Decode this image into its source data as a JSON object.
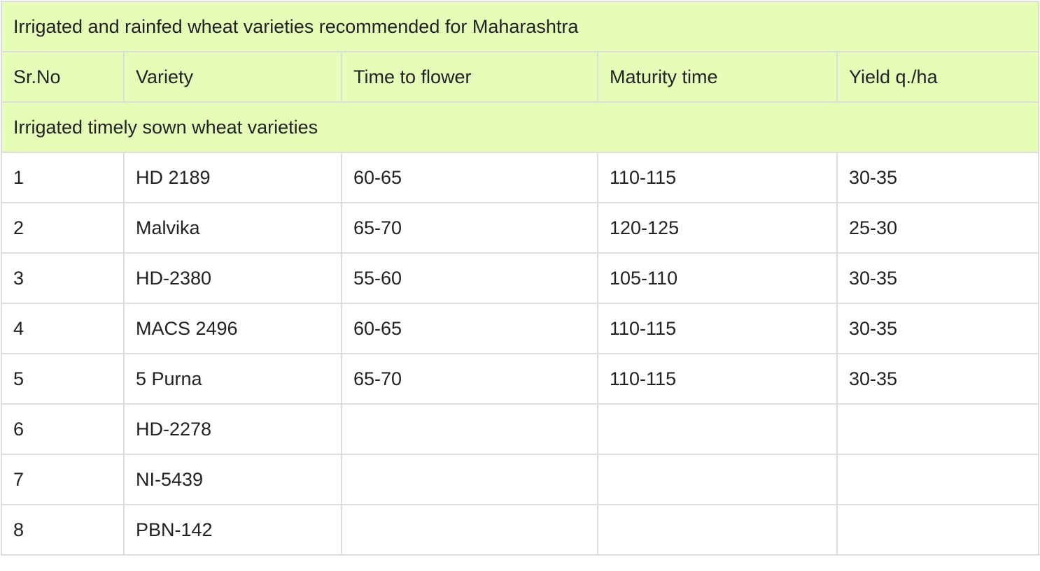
{
  "table": {
    "title": "Irrigated and rainfed wheat varieties recommended for Maharashtra",
    "headers": [
      "Sr.No",
      "Variety",
      "Time to flower",
      "Maturity time",
      "Yield q./ha"
    ],
    "section_title": "Irrigated timely sown wheat varieties",
    "rows": [
      [
        "1",
        "HD 2189",
        "60-65",
        "110-115",
        "30-35"
      ],
      [
        "2",
        "Malvika",
        "65-70",
        "120-125",
        "25-30"
      ],
      [
        "3",
        "HD-2380",
        "55-60",
        "105-110",
        "30-35"
      ],
      [
        "4",
        "MACS 2496",
        "60-65",
        "110-115",
        "30-35"
      ],
      [
        "5",
        "5 Purna",
        "65-70",
        "110-115",
        "30-35"
      ],
      [
        "6",
        "HD-2278",
        "",
        "",
        ""
      ],
      [
        "7",
        "NI-5439",
        "",
        "",
        ""
      ],
      [
        "8",
        "PBN-142",
        "",
        "",
        ""
      ]
    ],
    "colors": {
      "header_bg": "#e6fdb8",
      "border": "#dddddd",
      "text": "#222222"
    }
  }
}
